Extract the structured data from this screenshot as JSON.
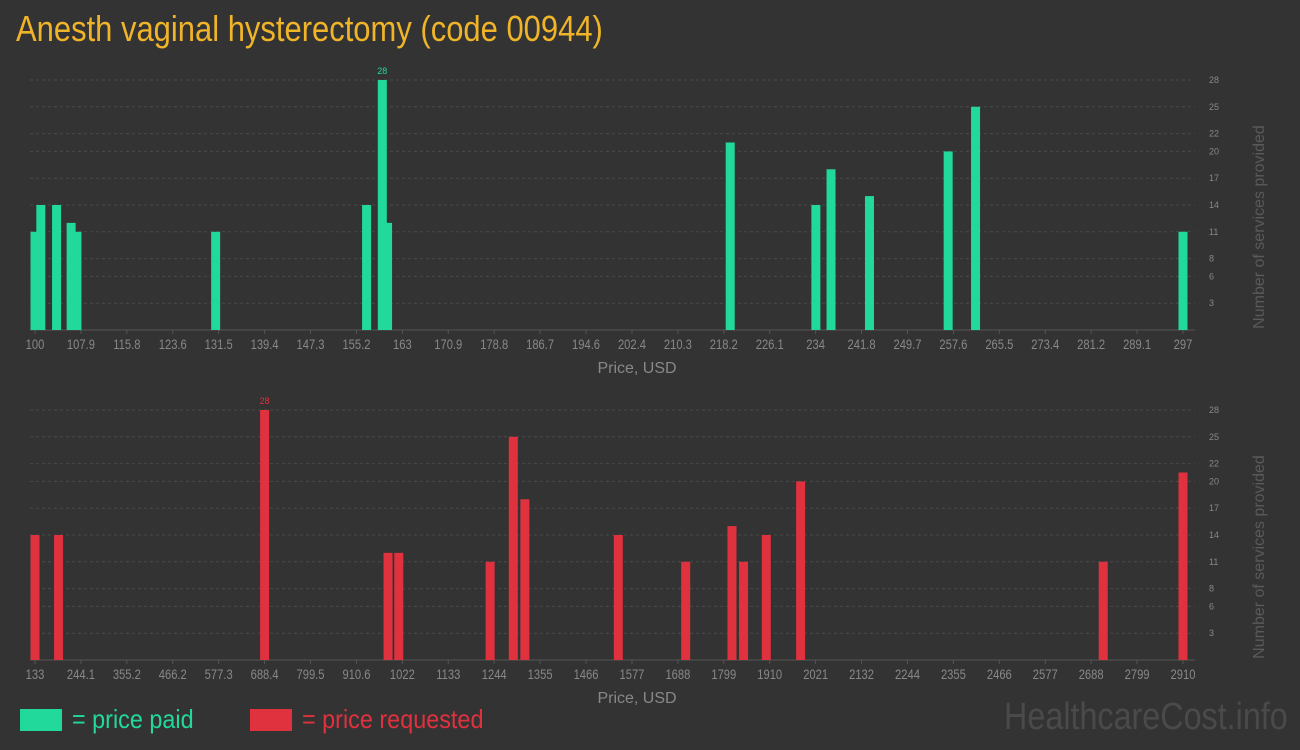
{
  "title": "Anesth vaginal hysterectomy (code 00944)",
  "legend": {
    "paid_label": "= price paid",
    "requested_label": "= price requested"
  },
  "watermark": "HealthcareCost.info",
  "colors": {
    "paid": "#21d99b",
    "requested": "#e0313f",
    "title": "#f0b429",
    "background": "#333333",
    "axis_text": "#888888",
    "grid": "#4a4a4a"
  },
  "chart_data": [
    {
      "type": "bar",
      "series": "price paid",
      "xlabel": "Price, USD",
      "ylabel": "Number of services provided",
      "xlim": [
        100,
        297
      ],
      "ylim": [
        0,
        28
      ],
      "x_ticks": [
        "100",
        "107.9",
        "115.8",
        "123.6",
        "131.5",
        "139.4",
        "147.3",
        "155.2",
        "163",
        "170.9",
        "178.8",
        "186.7",
        "194.6",
        "202.4",
        "210.3",
        "218.2",
        "226.1",
        "234",
        "241.8",
        "249.7",
        "257.6",
        "265.5",
        "273.4",
        "281.2",
        "289.1",
        "297"
      ],
      "y_ticks": [
        "3",
        "6",
        "8",
        "11",
        "14",
        "17",
        "20",
        "22",
        "25",
        "28"
      ],
      "grid": true,
      "max_label": "28",
      "x": [
        100,
        101,
        103.7,
        106.2,
        107.2,
        131,
        156.9,
        159.6,
        160.5,
        219.3,
        234,
        236.6,
        243.2,
        256.7,
        261.4,
        297
      ],
      "values": [
        11,
        14,
        14,
        12,
        11,
        11,
        14,
        28,
        12,
        21,
        14,
        18,
        15,
        20,
        25,
        11
      ]
    },
    {
      "type": "bar",
      "series": "price requested",
      "xlabel": "Price, USD",
      "ylabel": "Number of services provided",
      "xlim": [
        133,
        2910
      ],
      "ylim": [
        0,
        28
      ],
      "x_ticks": [
        "133",
        "244.1",
        "355.2",
        "466.2",
        "577.3",
        "688.4",
        "799.5",
        "910.6",
        "1022",
        "1133",
        "1244",
        "1355",
        "1466",
        "1577",
        "1688",
        "1799",
        "1910",
        "2021",
        "2132",
        "2244",
        "2355",
        "2466",
        "2577",
        "2688",
        "2799",
        "2910"
      ],
      "y_ticks": [
        "3",
        "6",
        "8",
        "11",
        "14",
        "17",
        "20",
        "22",
        "25",
        "28"
      ],
      "grid": true,
      "max_label": "28",
      "x": [
        133,
        190,
        688.4,
        987,
        1013,
        1234,
        1290,
        1318,
        1544,
        1707,
        1819,
        1847,
        1902,
        1985,
        2717,
        2910
      ],
      "values": [
        14,
        14,
        28,
        12,
        12,
        11,
        25,
        18,
        14,
        11,
        15,
        11,
        14,
        20,
        11,
        21
      ]
    }
  ]
}
